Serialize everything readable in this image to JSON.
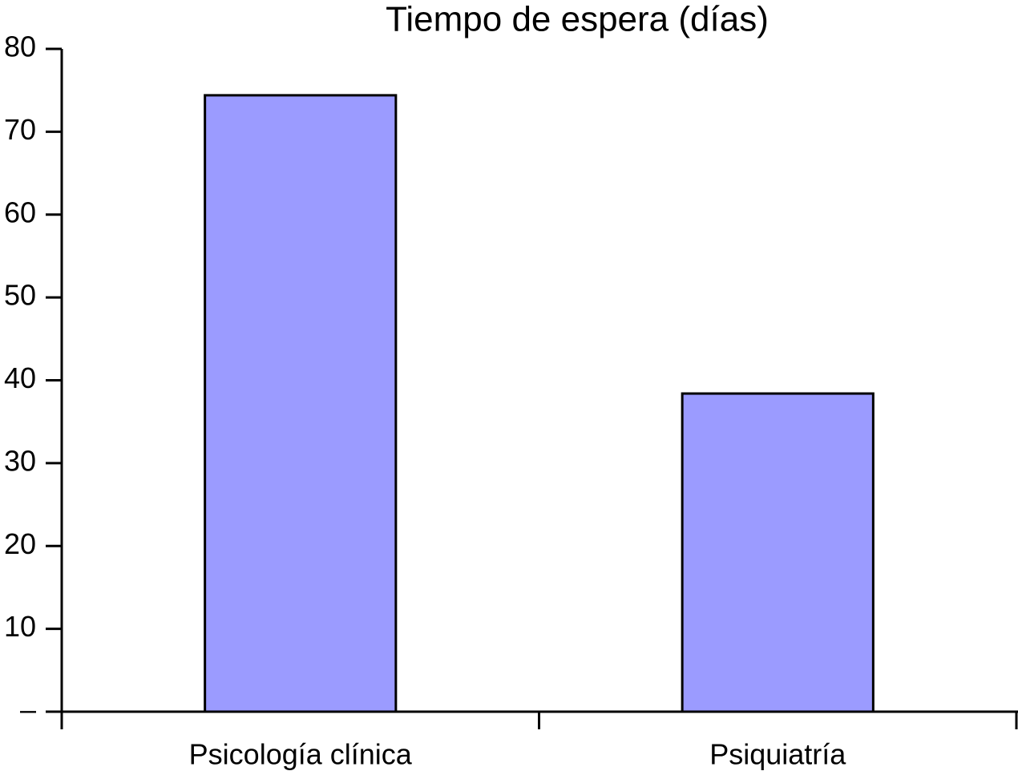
{
  "chart_data": {
    "type": "bar",
    "title": "Tiempo de espera (días)",
    "categories": [
      "Psicología clínica",
      "Psiquiatría"
    ],
    "values": [
      74.4,
      38.4
    ],
    "color": "#9b9bff",
    "ylim": [
      0,
      80
    ],
    "yticks": [
      {
        "value": 0,
        "label": "–"
      },
      10,
      20,
      30,
      40,
      50,
      60,
      70,
      80
    ],
    "grid": false
  }
}
